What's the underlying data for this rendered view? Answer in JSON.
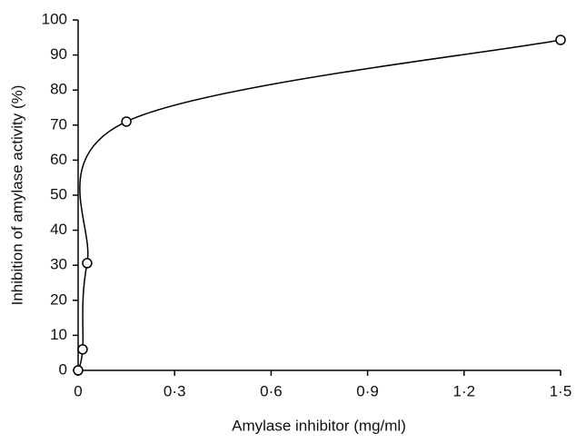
{
  "chart_data": {
    "type": "line",
    "x_label": "Amylase inhibitor (mg/ml)",
    "y_label": "Inhibition of amylase activity (%)",
    "x": [
      0,
      0.014,
      0.028,
      0.15,
      1.5
    ],
    "series": [
      {
        "values": [
          0,
          6,
          30.6,
          71,
          94.3
        ],
        "color": "#000000"
      }
    ],
    "xlim": [
      0,
      1.5
    ],
    "xticks": [
      0,
      {
        "value": 0.3,
        "label": "0·3"
      },
      {
        "value": 0.6,
        "label": "0·6"
      },
      {
        "value": 0.9,
        "label": "0·9"
      },
      {
        "value": 1.2,
        "label": "1·2"
      },
      {
        "value": 1.5,
        "label": "1·5"
      }
    ],
    "ylim": [
      0,
      100
    ],
    "yticks": [
      0,
      10,
      20,
      30,
      40,
      50,
      60,
      70,
      80,
      90,
      100
    ],
    "grid": false,
    "marker": "open-circle",
    "smooth": true
  }
}
